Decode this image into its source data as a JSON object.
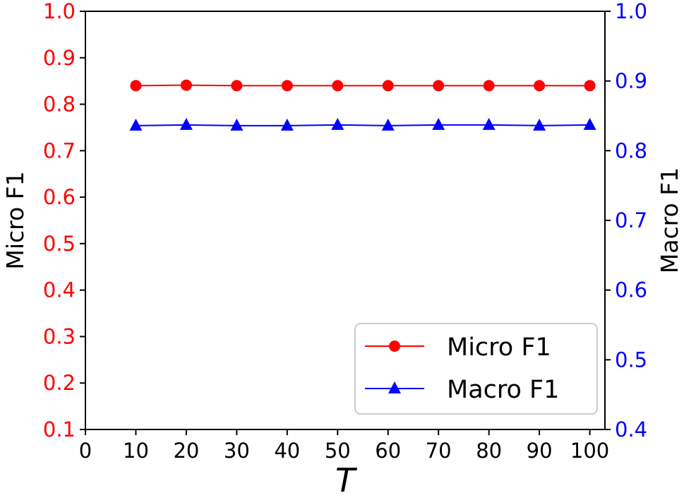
{
  "chart_data": {
    "type": "line",
    "xlabel": "T",
    "ylabel_left": "Micro F1",
    "ylabel_right": "Macro F1",
    "x": [
      10,
      20,
      30,
      40,
      50,
      60,
      70,
      80,
      90,
      100
    ],
    "xlim": [
      0,
      103
    ],
    "xticks": [
      "0",
      "10",
      "20",
      "30",
      "40",
      "50",
      "60",
      "70",
      "80",
      "90",
      "100"
    ],
    "ylim_left": [
      0.1,
      1.0
    ],
    "yticks_left": [
      "0.1",
      "0.2",
      "0.3",
      "0.4",
      "0.5",
      "0.6",
      "0.7",
      "0.8",
      "0.9",
      "1.0"
    ],
    "ylim_right": [
      0.4,
      1.0
    ],
    "yticks_right": [
      "0.4",
      "0.5",
      "0.6",
      "0.7",
      "0.8",
      "0.9",
      "1.0"
    ],
    "left_axis_color": "#ff0000",
    "right_axis_color": "#0000ff",
    "grid": false,
    "legend_position": "bottom-right",
    "series": [
      {
        "name": "Micro F1",
        "axis": "left",
        "color": "#ff0000",
        "marker": "circle",
        "values": [
          0.84,
          0.841,
          0.84,
          0.84,
          0.84,
          0.84,
          0.84,
          0.84,
          0.84,
          0.84
        ]
      },
      {
        "name": "Macro F1",
        "axis": "right",
        "color": "#0000ff",
        "marker": "triangle",
        "values": [
          0.836,
          0.837,
          0.836,
          0.836,
          0.837,
          0.836,
          0.837,
          0.837,
          0.836,
          0.837
        ]
      }
    ]
  }
}
